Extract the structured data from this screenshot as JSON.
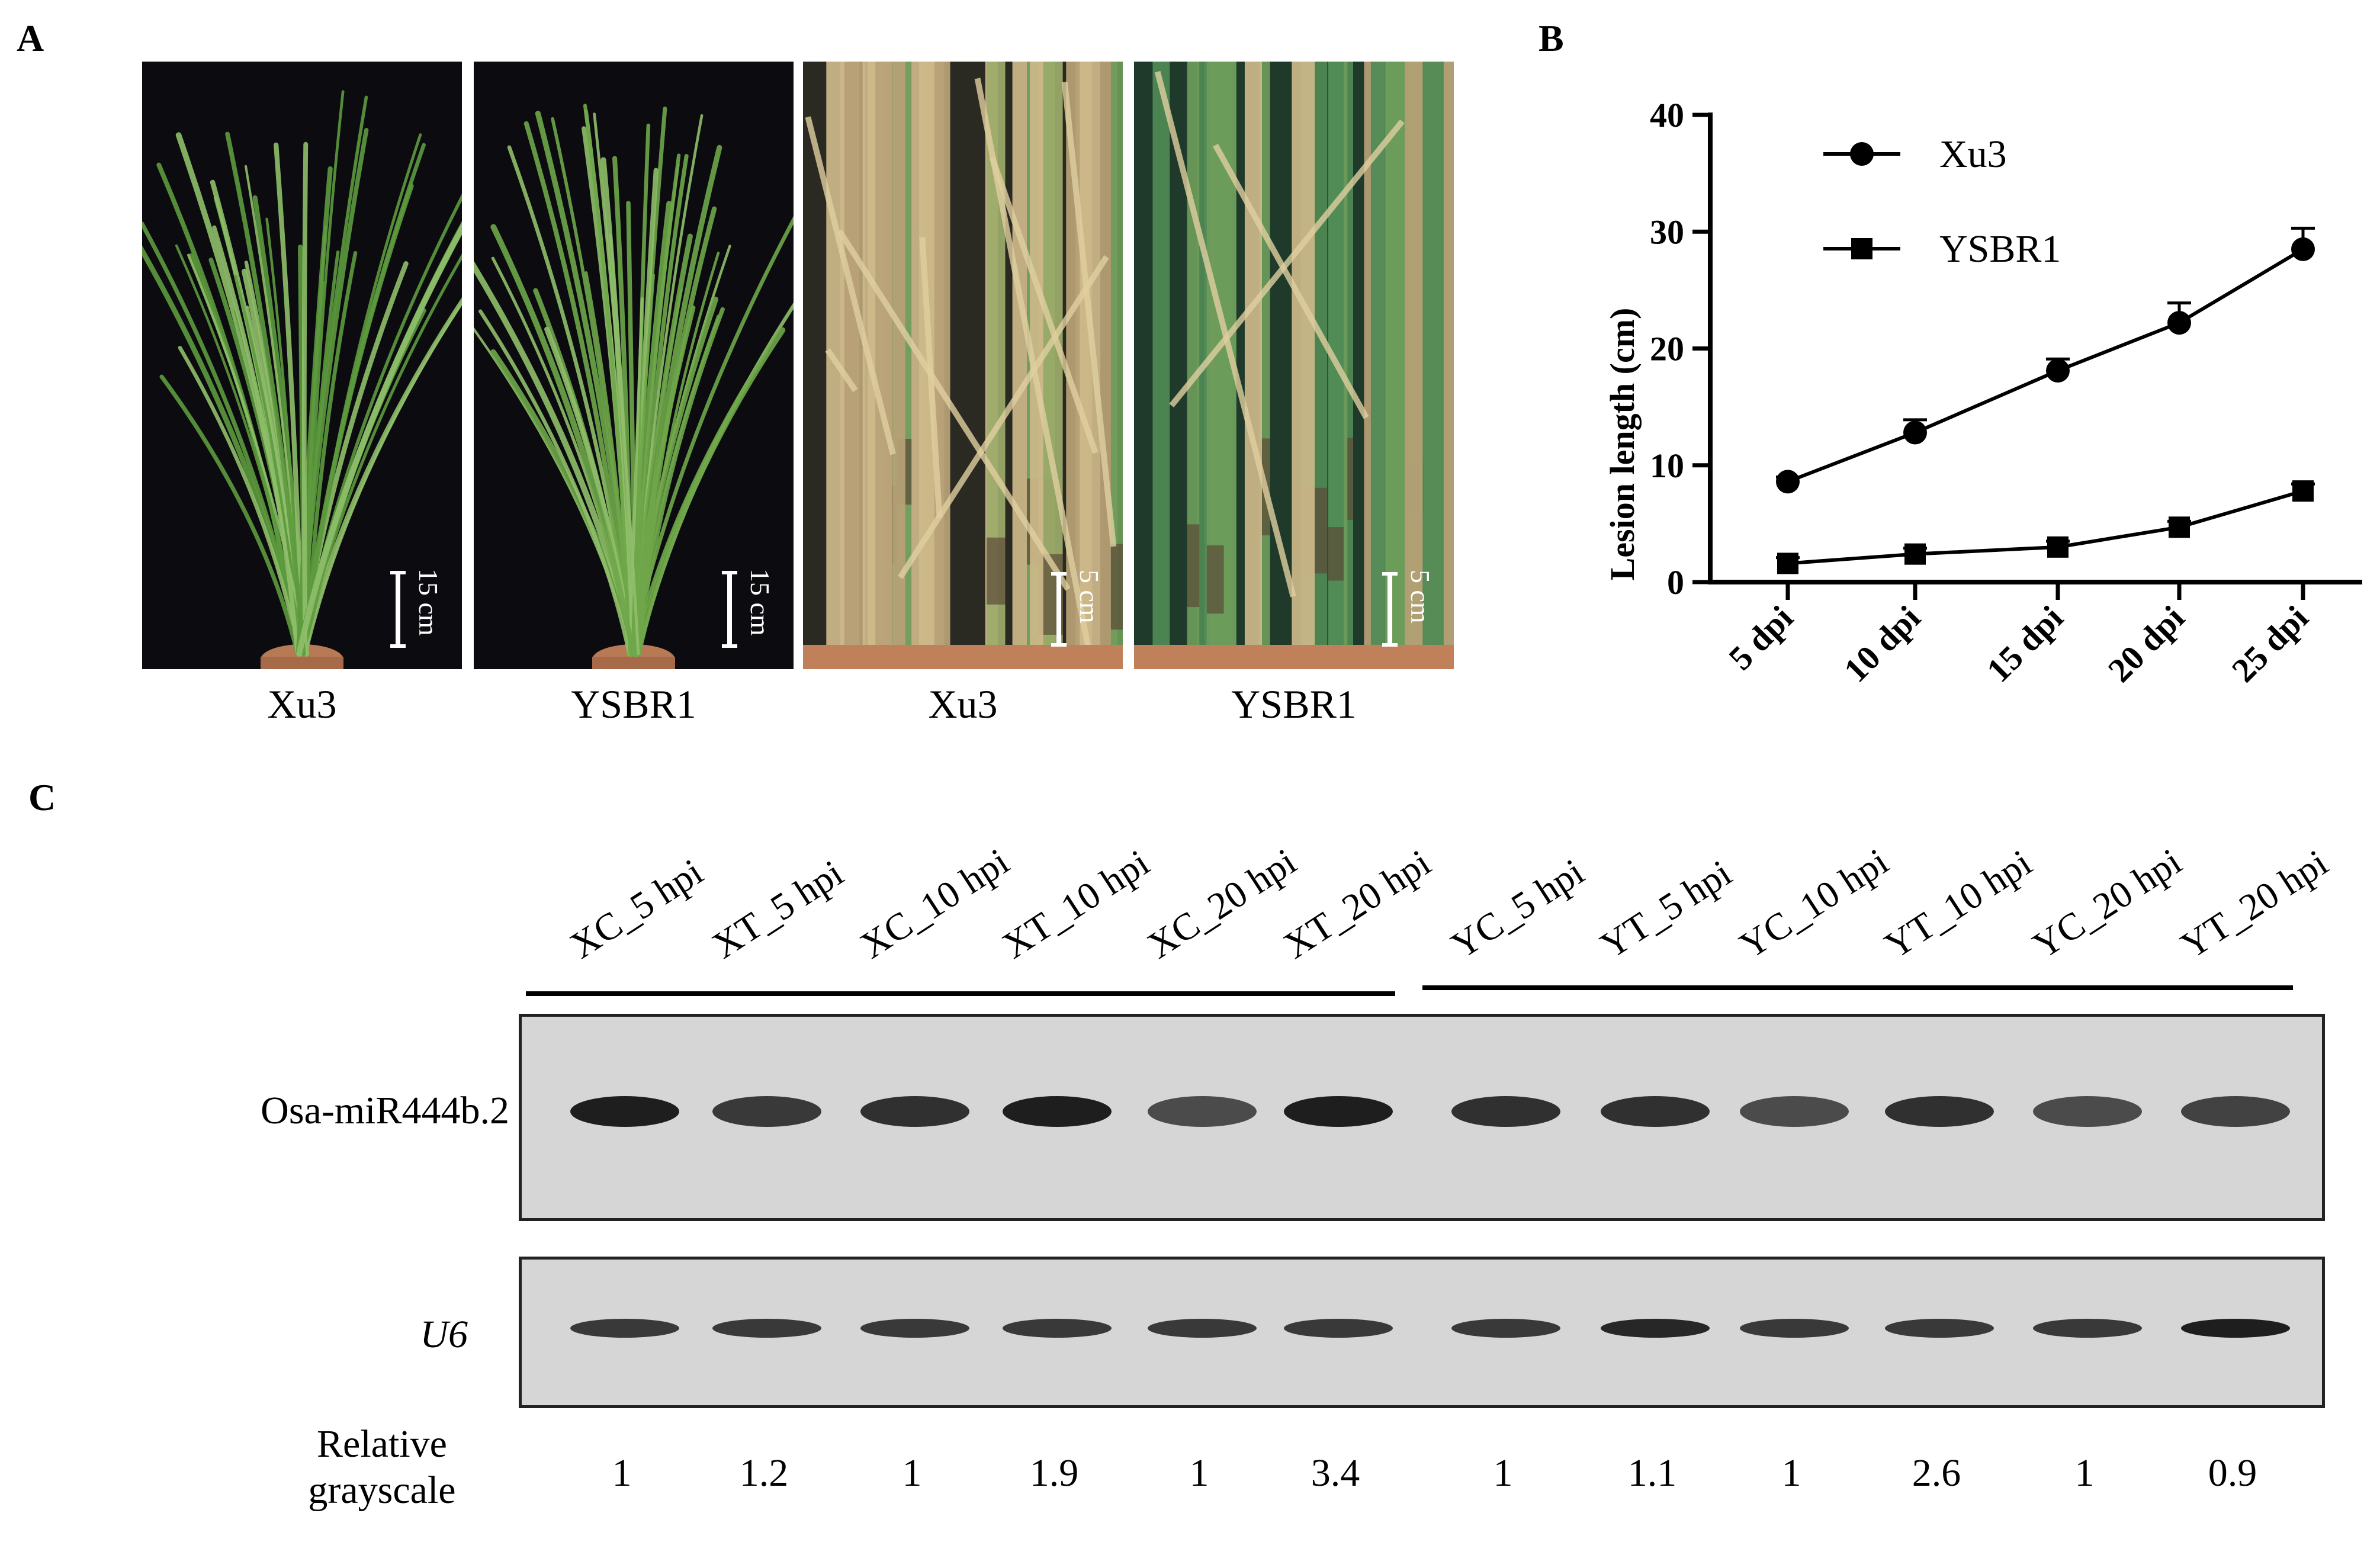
{
  "panels": {
    "a": "A",
    "b": "B",
    "c": "C"
  },
  "panel_a": {
    "photos": [
      {
        "label": "Xu3",
        "scale": "15 cm",
        "kind": "whole",
        "leaf_color": "#5d9a3e",
        "disease": 0.0
      },
      {
        "label": "YSBR1",
        "scale": "15 cm",
        "kind": "whole",
        "leaf_color": "#6ea649",
        "disease": 0.0
      },
      {
        "label": "Xu3",
        "scale": "5 cm",
        "kind": "closeup",
        "leaf_color": "#9cab6a",
        "disease": 0.8
      },
      {
        "label": "YSBR1",
        "scale": "5 cm",
        "kind": "closeup",
        "leaf_color": "#4f8a55",
        "disease": 0.25
      }
    ]
  },
  "chart_data": {
    "type": "line",
    "categories": [
      "5 dpi",
      "10 dpi",
      "15 dpi",
      "20 dpi",
      "25 dpi"
    ],
    "series": [
      {
        "name": "Xu3",
        "marker": "circle",
        "values": [
          8.6,
          12.8,
          18.1,
          22.2,
          28.5
        ],
        "errors": [
          0.4,
          1.1,
          1.0,
          1.7,
          1.8
        ]
      },
      {
        "name": "YSBR1",
        "marker": "square",
        "values": [
          1.6,
          2.4,
          3.0,
          4.7,
          7.8
        ],
        "errors": [
          0.5,
          0.5,
          0.5,
          0.5,
          0.6
        ]
      }
    ],
    "ylabel": "Lesion length (cm)",
    "xlabel": "",
    "ylim": [
      0,
      40
    ],
    "yticks": [
      0,
      10,
      20,
      30,
      40
    ],
    "legend": "top-left",
    "grid": false
  },
  "panel_c": {
    "lanes": [
      "XC_5 hpi",
      "XT_5 hpi",
      "XC_10 hpi",
      "XT_10 hpi",
      "XC_20 hpi",
      "XT_20 hpi",
      "YC_5 hpi",
      "YT_5 hpi",
      "YC_10 hpi",
      "YT_10 hpi",
      "YC_20 hpi",
      "YT_20 hpi"
    ],
    "mirna_label": "Osa-miR444b.2",
    "u6_label": "U6",
    "grayscale_label_1": "Relative",
    "grayscale_label_2": "grayscale",
    "grayscale_values": [
      "1",
      "1.2",
      "1",
      "1.9",
      "1",
      "3.4",
      "1",
      "1.1",
      "1",
      "2.6",
      "1",
      "0.9"
    ],
    "mirna_band_intensity": [
      0.95,
      0.8,
      0.85,
      0.95,
      0.7,
      0.95,
      0.85,
      0.85,
      0.7,
      0.85,
      0.7,
      0.75
    ],
    "u6_band_intensity": [
      0.8,
      0.8,
      0.8,
      0.8,
      0.8,
      0.8,
      0.8,
      0.9,
      0.8,
      0.8,
      0.8,
      0.95
    ]
  }
}
